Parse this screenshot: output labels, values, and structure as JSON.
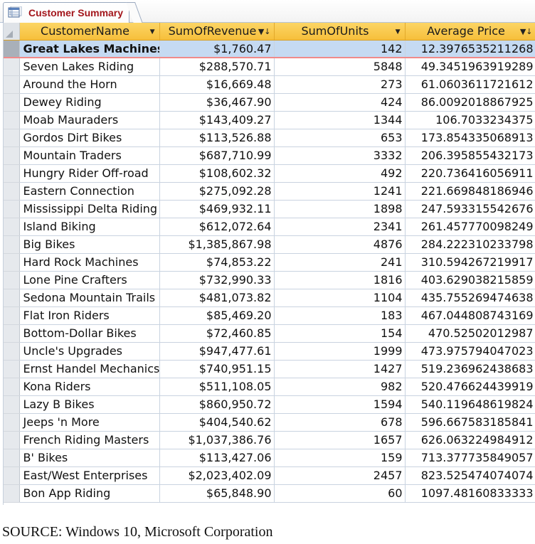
{
  "tab": {
    "title": "Customer Summary",
    "icon": "query-datasheet-icon"
  },
  "columns": [
    {
      "label": "CustomerName",
      "indicator": "▼"
    },
    {
      "label": "SumOfRevenue",
      "indicator": "▼↓"
    },
    {
      "label": "SumOfUnits",
      "indicator": "▼"
    },
    {
      "label": "Average Price",
      "indicator": "▼↓"
    }
  ],
  "rows": [
    {
      "name": "Great Lakes Machines",
      "revenue": "$1,760.47",
      "units": "142",
      "avg": "12.3976535211268"
    },
    {
      "name": "Seven Lakes Riding",
      "revenue": "$288,570.71",
      "units": "5848",
      "avg": "49.3451963919289"
    },
    {
      "name": "Around the Horn",
      "revenue": "$16,669.48",
      "units": "273",
      "avg": "61.0603611721612"
    },
    {
      "name": "Dewey Riding",
      "revenue": "$36,467.90",
      "units": "424",
      "avg": "86.0092018867925"
    },
    {
      "name": "Moab Mauraders",
      "revenue": "$143,409.27",
      "units": "1344",
      "avg": "106.7033234375"
    },
    {
      "name": "Gordos Dirt Bikes",
      "revenue": "$113,526.88",
      "units": "653",
      "avg": "173.854335068913"
    },
    {
      "name": "Mountain Traders",
      "revenue": "$687,710.99",
      "units": "3332",
      "avg": "206.395855432173"
    },
    {
      "name": "Hungry Rider Off-road",
      "revenue": "$108,602.32",
      "units": "492",
      "avg": "220.736416056911"
    },
    {
      "name": "Eastern Connection",
      "revenue": "$275,092.28",
      "units": "1241",
      "avg": "221.669848186946"
    },
    {
      "name": "Mississippi Delta Riding",
      "revenue": "$469,932.11",
      "units": "1898",
      "avg": "247.593315542676"
    },
    {
      "name": "Island Biking",
      "revenue": "$612,072.64",
      "units": "2341",
      "avg": "261.457770098249"
    },
    {
      "name": "Big Bikes",
      "revenue": "$1,385,867.98",
      "units": "4876",
      "avg": "284.222310233798"
    },
    {
      "name": "Hard Rock Machines",
      "revenue": "$74,853.22",
      "units": "241",
      "avg": "310.594267219917"
    },
    {
      "name": "Lone Pine Crafters",
      "revenue": "$732,990.33",
      "units": "1816",
      "avg": "403.629038215859"
    },
    {
      "name": "Sedona Mountain Trails",
      "revenue": "$481,073.82",
      "units": "1104",
      "avg": "435.755269474638"
    },
    {
      "name": "Flat Iron Riders",
      "revenue": "$85,469.20",
      "units": "183",
      "avg": "467.044808743169"
    },
    {
      "name": "Bottom-Dollar Bikes",
      "revenue": "$72,460.85",
      "units": "154",
      "avg": "470.52502012987"
    },
    {
      "name": "Uncle's Upgrades",
      "revenue": "$947,477.61",
      "units": "1999",
      "avg": "473.975794047023"
    },
    {
      "name": "Ernst Handel Mechanics",
      "revenue": "$740,951.15",
      "units": "1427",
      "avg": "519.236962438683"
    },
    {
      "name": "Kona Riders",
      "revenue": "$511,108.05",
      "units": "982",
      "avg": "520.476624439919"
    },
    {
      "name": "Lazy B Bikes",
      "revenue": "$860,950.72",
      "units": "1594",
      "avg": "540.119648619824"
    },
    {
      "name": "Jeeps 'n More",
      "revenue": "$404,540.62",
      "units": "678",
      "avg": "596.667583185841"
    },
    {
      "name": "French Riding Masters",
      "revenue": "$1,037,386.76",
      "units": "1657",
      "avg": "626.063224984912"
    },
    {
      "name": "B' Bikes",
      "revenue": "$113,427.06",
      "units": "159",
      "avg": "713.377735849057"
    },
    {
      "name": "East/West Enterprises",
      "revenue": "$2,023,402.09",
      "units": "2457",
      "avg": "823.525474074074"
    },
    {
      "name": "Bon App Riding",
      "revenue": "$65,848.90",
      "units": "60",
      "avg": "1097.48160833333"
    }
  ],
  "selected_row": 0,
  "colors": {
    "header": "#f9c64a",
    "tab_text": "#a3151b",
    "selected_row": "#c5daf2",
    "selected_border": "#f08a8a"
  },
  "caption": "SOURCE: Windows 10, Microsoft Corporation"
}
